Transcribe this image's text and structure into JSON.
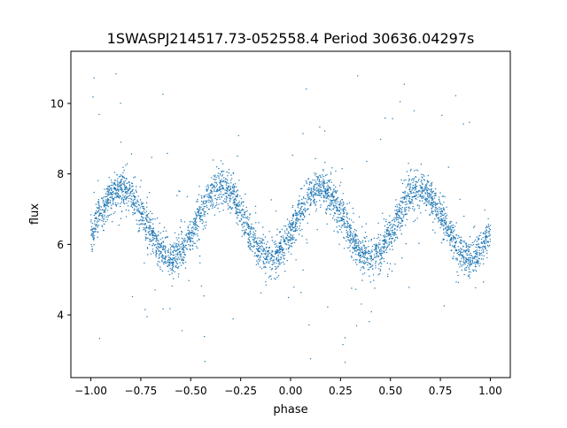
{
  "chart_data": {
    "type": "scatter",
    "title": "1SWASPJ214517.73-052558.4 Period 30636.04297s",
    "xlabel": "phase",
    "ylabel": "flux",
    "xlim": [
      -1.1,
      1.1
    ],
    "ylim": [
      2.22,
      11.48
    ],
    "xticks": [
      -1.0,
      -0.75,
      -0.5,
      -0.25,
      0.0,
      0.25,
      0.5,
      0.75,
      1.0
    ],
    "xtick_labels": [
      "−1.00",
      "−0.75",
      "−0.50",
      "−0.25",
      "0.00",
      "0.25",
      "0.50",
      "0.75",
      "1.00"
    ],
    "yticks": [
      4,
      6,
      8,
      10
    ],
    "ytick_labels": [
      "4",
      "6",
      "8",
      "10"
    ],
    "grid": false,
    "legend": "none",
    "point_color": "#1f77b4",
    "series": [
      {
        "name": "flux",
        "binned_phase": [
          -1.0,
          -0.95,
          -0.9,
          -0.85,
          -0.8,
          -0.75,
          -0.7,
          -0.65,
          -0.6,
          -0.55,
          -0.5,
          -0.45,
          -0.4,
          -0.35,
          -0.3,
          -0.25,
          -0.2,
          -0.15,
          -0.1,
          -0.05,
          0.0,
          0.05,
          0.1,
          0.15,
          0.2,
          0.25,
          0.3,
          0.35,
          0.4,
          0.45,
          0.5,
          0.55,
          0.6,
          0.65,
          0.7,
          0.75,
          0.8,
          0.85,
          0.9,
          0.95,
          1.0
        ],
        "binned_flux": [
          6.29,
          6.91,
          7.41,
          7.6,
          7.41,
          6.91,
          6.29,
          5.79,
          5.6,
          5.79,
          6.29,
          6.91,
          7.41,
          7.6,
          7.41,
          6.91,
          6.29,
          5.79,
          5.6,
          5.79,
          6.29,
          6.91,
          7.41,
          7.6,
          7.41,
          6.91,
          6.29,
          5.79,
          5.6,
          5.79,
          6.29,
          6.91,
          7.41,
          7.6,
          7.41,
          6.91,
          6.29,
          5.79,
          5.6,
          5.79,
          6.29
        ],
        "scatter_sigma": 0.25,
        "outlier_range": [
          2.6,
          11.0
        ],
        "n_points_approx": 4000
      }
    ]
  }
}
